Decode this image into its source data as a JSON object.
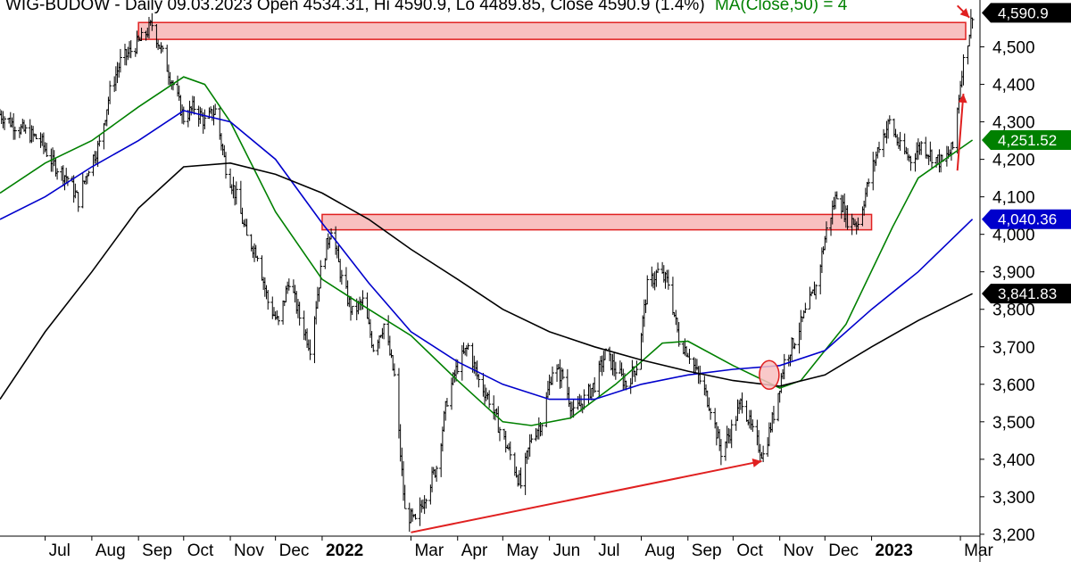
{
  "header": {
    "title_text": "WIG-BUDOW - Daily 09.03.2023 Open 4534.31, Hi 4590.9, Lo 4489.85, Close 4590.9 (1.4%)",
    "ma_text": "MA(Close,50) = 4"
  },
  "chart_data": {
    "type": "line",
    "x_tick_labels": [
      {
        "label": "Jul",
        "date": "2021-07-01",
        "bold": false
      },
      {
        "label": "Aug",
        "date": "2021-08-01",
        "bold": false
      },
      {
        "label": "Sep",
        "date": "2021-09-01",
        "bold": false
      },
      {
        "label": "Oct",
        "date": "2021-10-01",
        "bold": false
      },
      {
        "label": "Nov",
        "date": "2021-11-01",
        "bold": false
      },
      {
        "label": "Dec",
        "date": "2021-12-01",
        "bold": false
      },
      {
        "label": "2022",
        "date": "2022-01-01",
        "bold": true
      },
      {
        "label": "Mar",
        "date": "2022-03-01",
        "bold": false
      },
      {
        "label": "Apr",
        "date": "2022-04-01",
        "bold": false
      },
      {
        "label": "May",
        "date": "2022-05-01",
        "bold": false
      },
      {
        "label": "Jun",
        "date": "2022-06-01",
        "bold": false
      },
      {
        "label": "Jul",
        "date": "2022-07-01",
        "bold": false
      },
      {
        "label": "Aug",
        "date": "2022-08-01",
        "bold": false
      },
      {
        "label": "Sep",
        "date": "2022-09-01",
        "bold": false
      },
      {
        "label": "Oct",
        "date": "2022-10-01",
        "bold": false
      },
      {
        "label": "Nov",
        "date": "2022-11-01",
        "bold": false
      },
      {
        "label": "Dec",
        "date": "2022-12-01",
        "bold": false
      },
      {
        "label": "2023",
        "date": "2023-01-01",
        "bold": true
      },
      {
        "label": "Mar",
        "date": "2023-03-01",
        "bold": false
      }
    ],
    "y_tick_labels": [
      "3,200",
      "3,300",
      "3,400",
      "3,500",
      "3,600",
      "3,700",
      "3,800",
      "3,900",
      "4,000",
      "4,100",
      "4,200",
      "4,300",
      "4,400",
      "4,500"
    ],
    "y_ticks": [
      3200,
      3300,
      3400,
      3500,
      3600,
      3700,
      3800,
      3900,
      4000,
      4100,
      4200,
      4300,
      4400,
      4500
    ],
    "x_range": [
      "2021-06-01",
      "2023-03-14"
    ],
    "ylim": [
      3195,
      4625
    ],
    "grid": false,
    "price_series": {
      "style": "ohlc bars",
      "color": "#000000",
      "points": [
        [
          "2021-06-01",
          4320
        ],
        [
          "2021-06-15",
          4280
        ],
        [
          "2021-06-28",
          4250
        ],
        [
          "2021-07-06",
          4190
        ],
        [
          "2021-07-16",
          4150
        ],
        [
          "2021-07-23",
          4090
        ],
        [
          "2021-07-30",
          4180
        ],
        [
          "2021-08-06",
          4240
        ],
        [
          "2021-08-13",
          4380
        ],
        [
          "2021-08-20",
          4460
        ],
        [
          "2021-08-27",
          4490
        ],
        [
          "2021-09-03",
          4520
        ],
        [
          "2021-09-10",
          4560
        ],
        [
          "2021-09-17",
          4480
        ],
        [
          "2021-09-24",
          4400
        ],
        [
          "2021-10-01",
          4310
        ],
        [
          "2021-10-08",
          4340
        ],
        [
          "2021-10-15",
          4300
        ],
        [
          "2021-10-22",
          4330
        ],
        [
          "2021-10-29",
          4180
        ],
        [
          "2021-11-05",
          4100
        ],
        [
          "2021-11-12",
          3990
        ],
        [
          "2021-11-19",
          3950
        ],
        [
          "2021-11-26",
          3820
        ],
        [
          "2021-12-03",
          3760
        ],
        [
          "2021-12-10",
          3880
        ],
        [
          "2021-12-17",
          3780
        ],
        [
          "2021-12-24",
          3700
        ],
        [
          "2021-12-31",
          3900
        ],
        [
          "2022-01-07",
          4020
        ],
        [
          "2022-01-14",
          3880
        ],
        [
          "2022-01-21",
          3790
        ],
        [
          "2022-01-28",
          3820
        ],
        [
          "2022-02-04",
          3700
        ],
        [
          "2022-02-11",
          3760
        ],
        [
          "2022-02-18",
          3620
        ],
        [
          "2022-02-25",
          3260
        ],
        [
          "2022-03-04",
          3230
        ],
        [
          "2022-03-11",
          3310
        ],
        [
          "2022-03-18",
          3380
        ],
        [
          "2022-03-25",
          3560
        ],
        [
          "2022-04-01",
          3650
        ],
        [
          "2022-04-08",
          3700
        ],
        [
          "2022-04-15",
          3610
        ],
        [
          "2022-04-22",
          3560
        ],
        [
          "2022-04-29",
          3480
        ],
        [
          "2022-05-06",
          3410
        ],
        [
          "2022-05-13",
          3330
        ],
        [
          "2022-05-20",
          3460
        ],
        [
          "2022-05-27",
          3500
        ],
        [
          "2022-06-03",
          3640
        ],
        [
          "2022-06-10",
          3620
        ],
        [
          "2022-06-17",
          3520
        ],
        [
          "2022-06-24",
          3560
        ],
        [
          "2022-07-01",
          3600
        ],
        [
          "2022-07-08",
          3680
        ],
        [
          "2022-07-15",
          3640
        ],
        [
          "2022-07-22",
          3600
        ],
        [
          "2022-07-29",
          3650
        ],
        [
          "2022-08-05",
          3860
        ],
        [
          "2022-08-12",
          3900
        ],
        [
          "2022-08-19",
          3870
        ],
        [
          "2022-08-26",
          3720
        ],
        [
          "2022-09-02",
          3680
        ],
        [
          "2022-09-09",
          3610
        ],
        [
          "2022-09-16",
          3540
        ],
        [
          "2022-09-23",
          3420
        ],
        [
          "2022-09-30",
          3480
        ],
        [
          "2022-10-07",
          3560
        ],
        [
          "2022-10-14",
          3470
        ],
        [
          "2022-10-21",
          3410
        ],
        [
          "2022-10-28",
          3520
        ],
        [
          "2022-11-04",
          3660
        ],
        [
          "2022-11-11",
          3720
        ],
        [
          "2022-11-18",
          3790
        ],
        [
          "2022-11-25",
          3860
        ],
        [
          "2022-12-02",
          4010
        ],
        [
          "2022-12-09",
          4110
        ],
        [
          "2022-12-16",
          4040
        ],
        [
          "2022-12-23",
          4030
        ],
        [
          "2022-12-30",
          4140
        ],
        [
          "2023-01-06",
          4240
        ],
        [
          "2023-01-13",
          4300
        ],
        [
          "2023-01-20",
          4230
        ],
        [
          "2023-01-27",
          4200
        ],
        [
          "2023-02-03",
          4240
        ],
        [
          "2023-02-10",
          4210
        ],
        [
          "2023-02-17",
          4190
        ],
        [
          "2023-02-24",
          4230
        ],
        [
          "2023-03-02",
          4440
        ],
        [
          "2023-03-07",
          4540
        ],
        [
          "2023-03-09",
          4590.9
        ]
      ]
    },
    "moving_averages": [
      {
        "color": "#008000",
        "points": [
          [
            "2021-06-01",
            4110
          ],
          [
            "2021-07-01",
            4190
          ],
          [
            "2021-08-01",
            4250
          ],
          [
            "2021-09-01",
            4340
          ],
          [
            "2021-10-01",
            4420
          ],
          [
            "2021-10-15",
            4400
          ],
          [
            "2021-11-01",
            4300
          ],
          [
            "2021-12-01",
            4060
          ],
          [
            "2022-01-01",
            3880
          ],
          [
            "2022-02-01",
            3800
          ],
          [
            "2022-03-01",
            3730
          ],
          [
            "2022-04-01",
            3610
          ],
          [
            "2022-05-01",
            3500
          ],
          [
            "2022-05-20",
            3490
          ],
          [
            "2022-06-15",
            3510
          ],
          [
            "2022-07-15",
            3600
          ],
          [
            "2022-08-15",
            3710
          ],
          [
            "2022-09-01",
            3715
          ],
          [
            "2022-10-01",
            3650
          ],
          [
            "2022-11-01",
            3590
          ],
          [
            "2022-11-15",
            3610
          ],
          [
            "2022-12-15",
            3760
          ],
          [
            "2023-01-15",
            4020
          ],
          [
            "2023-02-01",
            4150
          ],
          [
            "2023-03-09",
            4251.52
          ]
        ]
      },
      {
        "color": "#0000cc",
        "points": [
          [
            "2021-06-01",
            4040
          ],
          [
            "2021-07-01",
            4100
          ],
          [
            "2021-08-01",
            4180
          ],
          [
            "2021-09-01",
            4250
          ],
          [
            "2021-10-01",
            4330
          ],
          [
            "2021-11-01",
            4300
          ],
          [
            "2021-12-01",
            4200
          ],
          [
            "2022-01-01",
            4030
          ],
          [
            "2022-02-01",
            3870
          ],
          [
            "2022-03-01",
            3740
          ],
          [
            "2022-04-01",
            3660
          ],
          [
            "2022-05-01",
            3600
          ],
          [
            "2022-06-01",
            3560
          ],
          [
            "2022-07-01",
            3560
          ],
          [
            "2022-08-01",
            3600
          ],
          [
            "2022-09-01",
            3625
          ],
          [
            "2022-10-01",
            3640
          ],
          [
            "2022-11-01",
            3650
          ],
          [
            "2022-12-01",
            3690
          ],
          [
            "2023-01-01",
            3800
          ],
          [
            "2023-02-01",
            3900
          ],
          [
            "2023-03-09",
            4040.36
          ]
        ]
      },
      {
        "color": "#000000",
        "points": [
          [
            "2021-06-01",
            3560
          ],
          [
            "2021-07-01",
            3740
          ],
          [
            "2021-08-01",
            3900
          ],
          [
            "2021-09-01",
            4070
          ],
          [
            "2021-10-01",
            4180
          ],
          [
            "2021-11-01",
            4190
          ],
          [
            "2021-12-01",
            4160
          ],
          [
            "2022-01-01",
            4110
          ],
          [
            "2022-02-01",
            4040
          ],
          [
            "2022-03-01",
            3960
          ],
          [
            "2022-04-01",
            3880
          ],
          [
            "2022-05-01",
            3800
          ],
          [
            "2022-06-01",
            3740
          ],
          [
            "2022-07-01",
            3700
          ],
          [
            "2022-08-01",
            3665
          ],
          [
            "2022-09-01",
            3635
          ],
          [
            "2022-10-01",
            3610
          ],
          [
            "2022-11-01",
            3595
          ],
          [
            "2022-12-01",
            3625
          ],
          [
            "2023-01-01",
            3700
          ],
          [
            "2023-02-01",
            3770
          ],
          [
            "2023-03-09",
            3841.83
          ]
        ]
      }
    ],
    "right_tags": [
      {
        "text": "4,590.9",
        "value": 4590.9,
        "bg": "#000000"
      },
      {
        "text": "4,251.52",
        "value": 4251.52,
        "bg": "#008000"
      },
      {
        "text": "4,040.36",
        "value": 4040.36,
        "bg": "#0000cc"
      },
      {
        "text": "3,841.83",
        "value": 3841.83,
        "bg": "#000000"
      }
    ],
    "annotations": {
      "resistance_zones": [
        {
          "x1": "2021-09-01",
          "x2": "2023-03-14",
          "y_low": 4520,
          "y_high": 4565,
          "fill": "#f8c0c0",
          "stroke": "#e02020"
        },
        {
          "x1": "2022-01-01",
          "x2": "2023-01-01",
          "y_low": 4012,
          "y_high": 4053,
          "fill": "#f8c0c0",
          "stroke": "#e02020"
        }
      ],
      "circle_marker": {
        "date": "2022-10-25",
        "value": 3625,
        "fill": "#f8c0c0",
        "stroke": "#e02020"
      },
      "arrows": [
        {
          "from": [
            "2022-03-01",
            3205
          ],
          "to": [
            "2022-10-20",
            3395
          ],
          "color": "#e02020"
        },
        {
          "from": [
            "2023-02-27",
            4170
          ],
          "to": [
            "2023-03-03",
            4375
          ],
          "color": "#e02020"
        },
        {
          "from": [
            "2023-02-27",
            4610
          ],
          "to": [
            "2023-03-07",
            4578
          ],
          "color": "#e02020"
        }
      ]
    }
  }
}
